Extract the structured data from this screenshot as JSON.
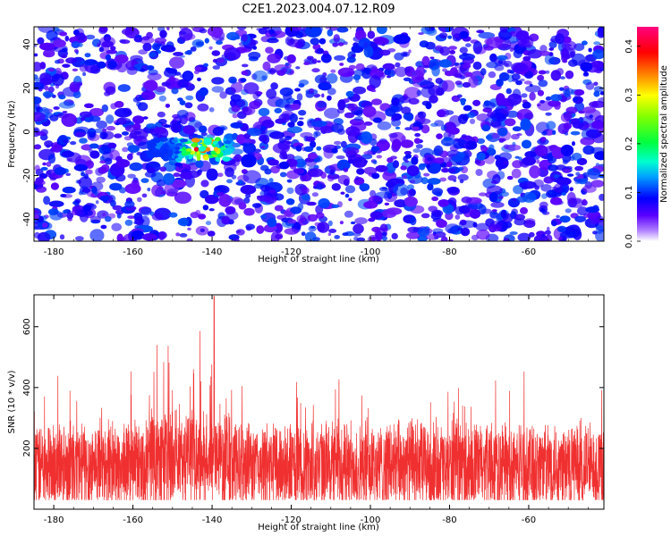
{
  "title": "C2E1.2023.004.07.12.R09",
  "colors": {
    "snr_line": "#f03030",
    "background": "#ffffff",
    "axis": "#000000"
  },
  "chart_data": [
    {
      "type": "heatmap",
      "xlabel": "Height of straight line (km)",
      "ylabel": "Frequency (Hz)",
      "xlim": [
        -185,
        -41
      ],
      "ylim": [
        -50,
        48
      ],
      "x_ticks": [
        -180,
        -160,
        -140,
        -120,
        -100,
        -80,
        -60
      ],
      "x_tick_labels": [
        "-180",
        "-160",
        "-140",
        "-120",
        "-100",
        "-80",
        "-60"
      ],
      "y_ticks": [
        -40,
        -20,
        0,
        20,
        40
      ],
      "y_tick_labels": [
        "-40",
        "-20",
        "0",
        "20",
        "40"
      ],
      "colorbar": {
        "label": "Normalized spectral amplitude",
        "range": [
          0,
          0.44
        ],
        "ticks": [
          0.0,
          0.1,
          0.2,
          0.3,
          0.4
        ],
        "tick_labels": [
          "0.0",
          "0.1",
          "0.2",
          "0.3",
          "0.4"
        ],
        "colormap": "gist_rainbow"
      },
      "background_level": 0.05,
      "hotspot": {
        "x_range": [
          -156,
          -135
        ],
        "freq_center": -8,
        "peak_x": -142,
        "peak_value": 0.4
      }
    },
    {
      "type": "line",
      "xlabel": "Height of straight line (km)",
      "ylabel": "SNR (10 * v/v)",
      "xlim": [
        -185,
        -41
      ],
      "ylim": [
        0,
        705
      ],
      "x_ticks": [
        -180,
        -160,
        -140,
        -120,
        -100,
        -80,
        -60
      ],
      "x_tick_labels": [
        "-180",
        "-160",
        "-140",
        "-120",
        "-100",
        "-80",
        "-60"
      ],
      "y_ticks": [
        200,
        400,
        600
      ],
      "y_tick_labels": [
        "200",
        "400",
        "600"
      ],
      "series_baseline": 130,
      "series_spread": [
        30,
        330
      ],
      "peak": {
        "x": -139.5,
        "y": 700
      },
      "elevated_region": {
        "x_range": [
          -156,
          -135
        ],
        "typical_max": 520
      }
    }
  ]
}
